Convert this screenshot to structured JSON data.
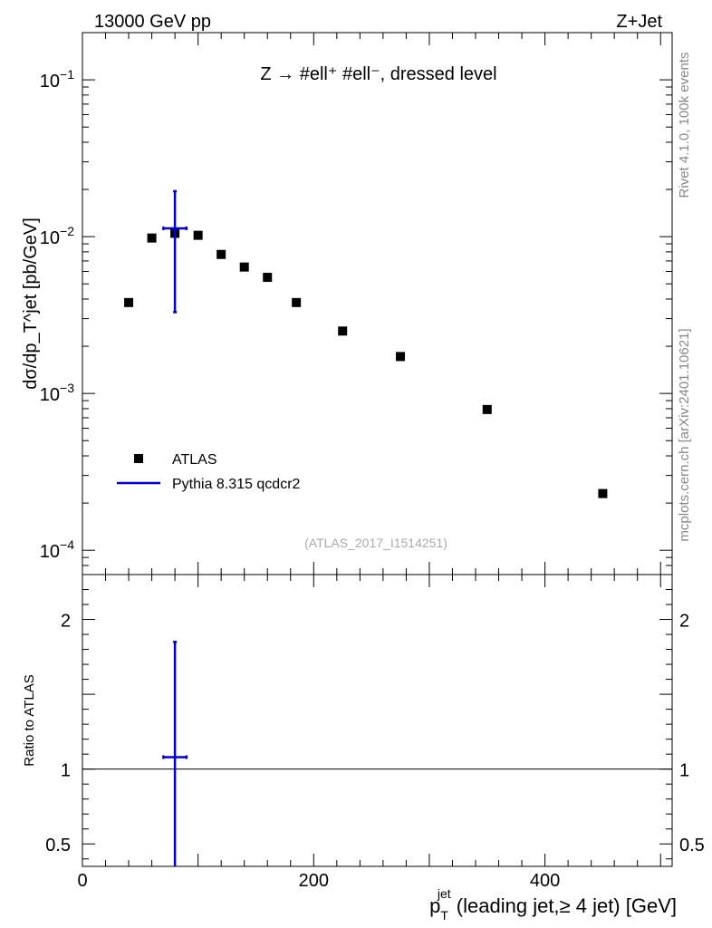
{
  "header": {
    "left": "13000 GeV pp",
    "right": "Z+Jet"
  },
  "side_labels": {
    "rivet": "Rivet 4.1.0,  100k events",
    "mcplots": "mcplots.cern.ch [arXiv:2401.10621]"
  },
  "chart_data": {
    "type": "scatter",
    "title": "Z → #ell⁺ #ell⁻, dressed level",
    "analysis_tag": "(ATLAS_2017_I1514251)",
    "main_panel": {
      "ylabel": "dσ/dp_T^jet [pb/GeV]",
      "yscale": "log",
      "ylim": [
        7e-05,
        0.2
      ],
      "ytick_labels": [
        {
          "base": "10",
          "exp": "−1",
          "value": 0.1
        },
        {
          "base": "10",
          "exp": "−2",
          "value": 0.01
        },
        {
          "base": "10",
          "exp": "−3",
          "value": 0.001
        },
        {
          "base": "10",
          "exp": "−4",
          "value": 0.0001
        }
      ]
    },
    "ratio_panel": {
      "ylabel": "Ratio to ATLAS",
      "ylim": [
        0.35,
        2.3
      ],
      "ytick_labels": [
        {
          "label": "2",
          "value": 2
        },
        {
          "label": "1",
          "value": 1
        },
        {
          "label": "0.5",
          "value": 0.5
        }
      ]
    },
    "xaxis": {
      "xlabel_main": "p",
      "xlabel_sub": "T",
      "xlabel_sup": "jet",
      "xlabel_rest": " (leading jet,≥ 4 jet) [GeV]",
      "xlim": [
        0,
        510
      ],
      "tick_labels": [
        {
          "label": "0",
          "value": 0
        },
        {
          "label": "200",
          "value": 200
        },
        {
          "label": "400",
          "value": 400
        }
      ]
    },
    "series": [
      {
        "name": "ATLAS",
        "style": "marker",
        "color": "#000000",
        "points": [
          {
            "x": 40,
            "y": 0.0038
          },
          {
            "x": 60,
            "y": 0.0098
          },
          {
            "x": 80,
            "y": 0.0105
          },
          {
            "x": 100,
            "y": 0.0102
          },
          {
            "x": 120,
            "y": 0.0077
          },
          {
            "x": 140,
            "y": 0.0064
          },
          {
            "x": 160,
            "y": 0.0055
          },
          {
            "x": 185,
            "y": 0.0038
          },
          {
            "x": 225,
            "y": 0.0025
          },
          {
            "x": 275,
            "y": 0.00172
          },
          {
            "x": 350,
            "y": 0.00079
          },
          {
            "x": 450,
            "y": 0.00023
          }
        ]
      },
      {
        "name": "Pythia 8.315 qcdcr2",
        "style": "errorbar",
        "color": "#0000dd",
        "points": [
          {
            "x": 80,
            "xlo": 70,
            "xhi": 90,
            "y": 0.0113,
            "ylo": 0.0033,
            "yhi": 0.0195
          }
        ],
        "ratio_points": [
          {
            "x": 80,
            "xlo": 70,
            "xhi": 90,
            "y": 1.08,
            "ylo": 0.3,
            "yhi": 1.85
          }
        ]
      }
    ]
  }
}
